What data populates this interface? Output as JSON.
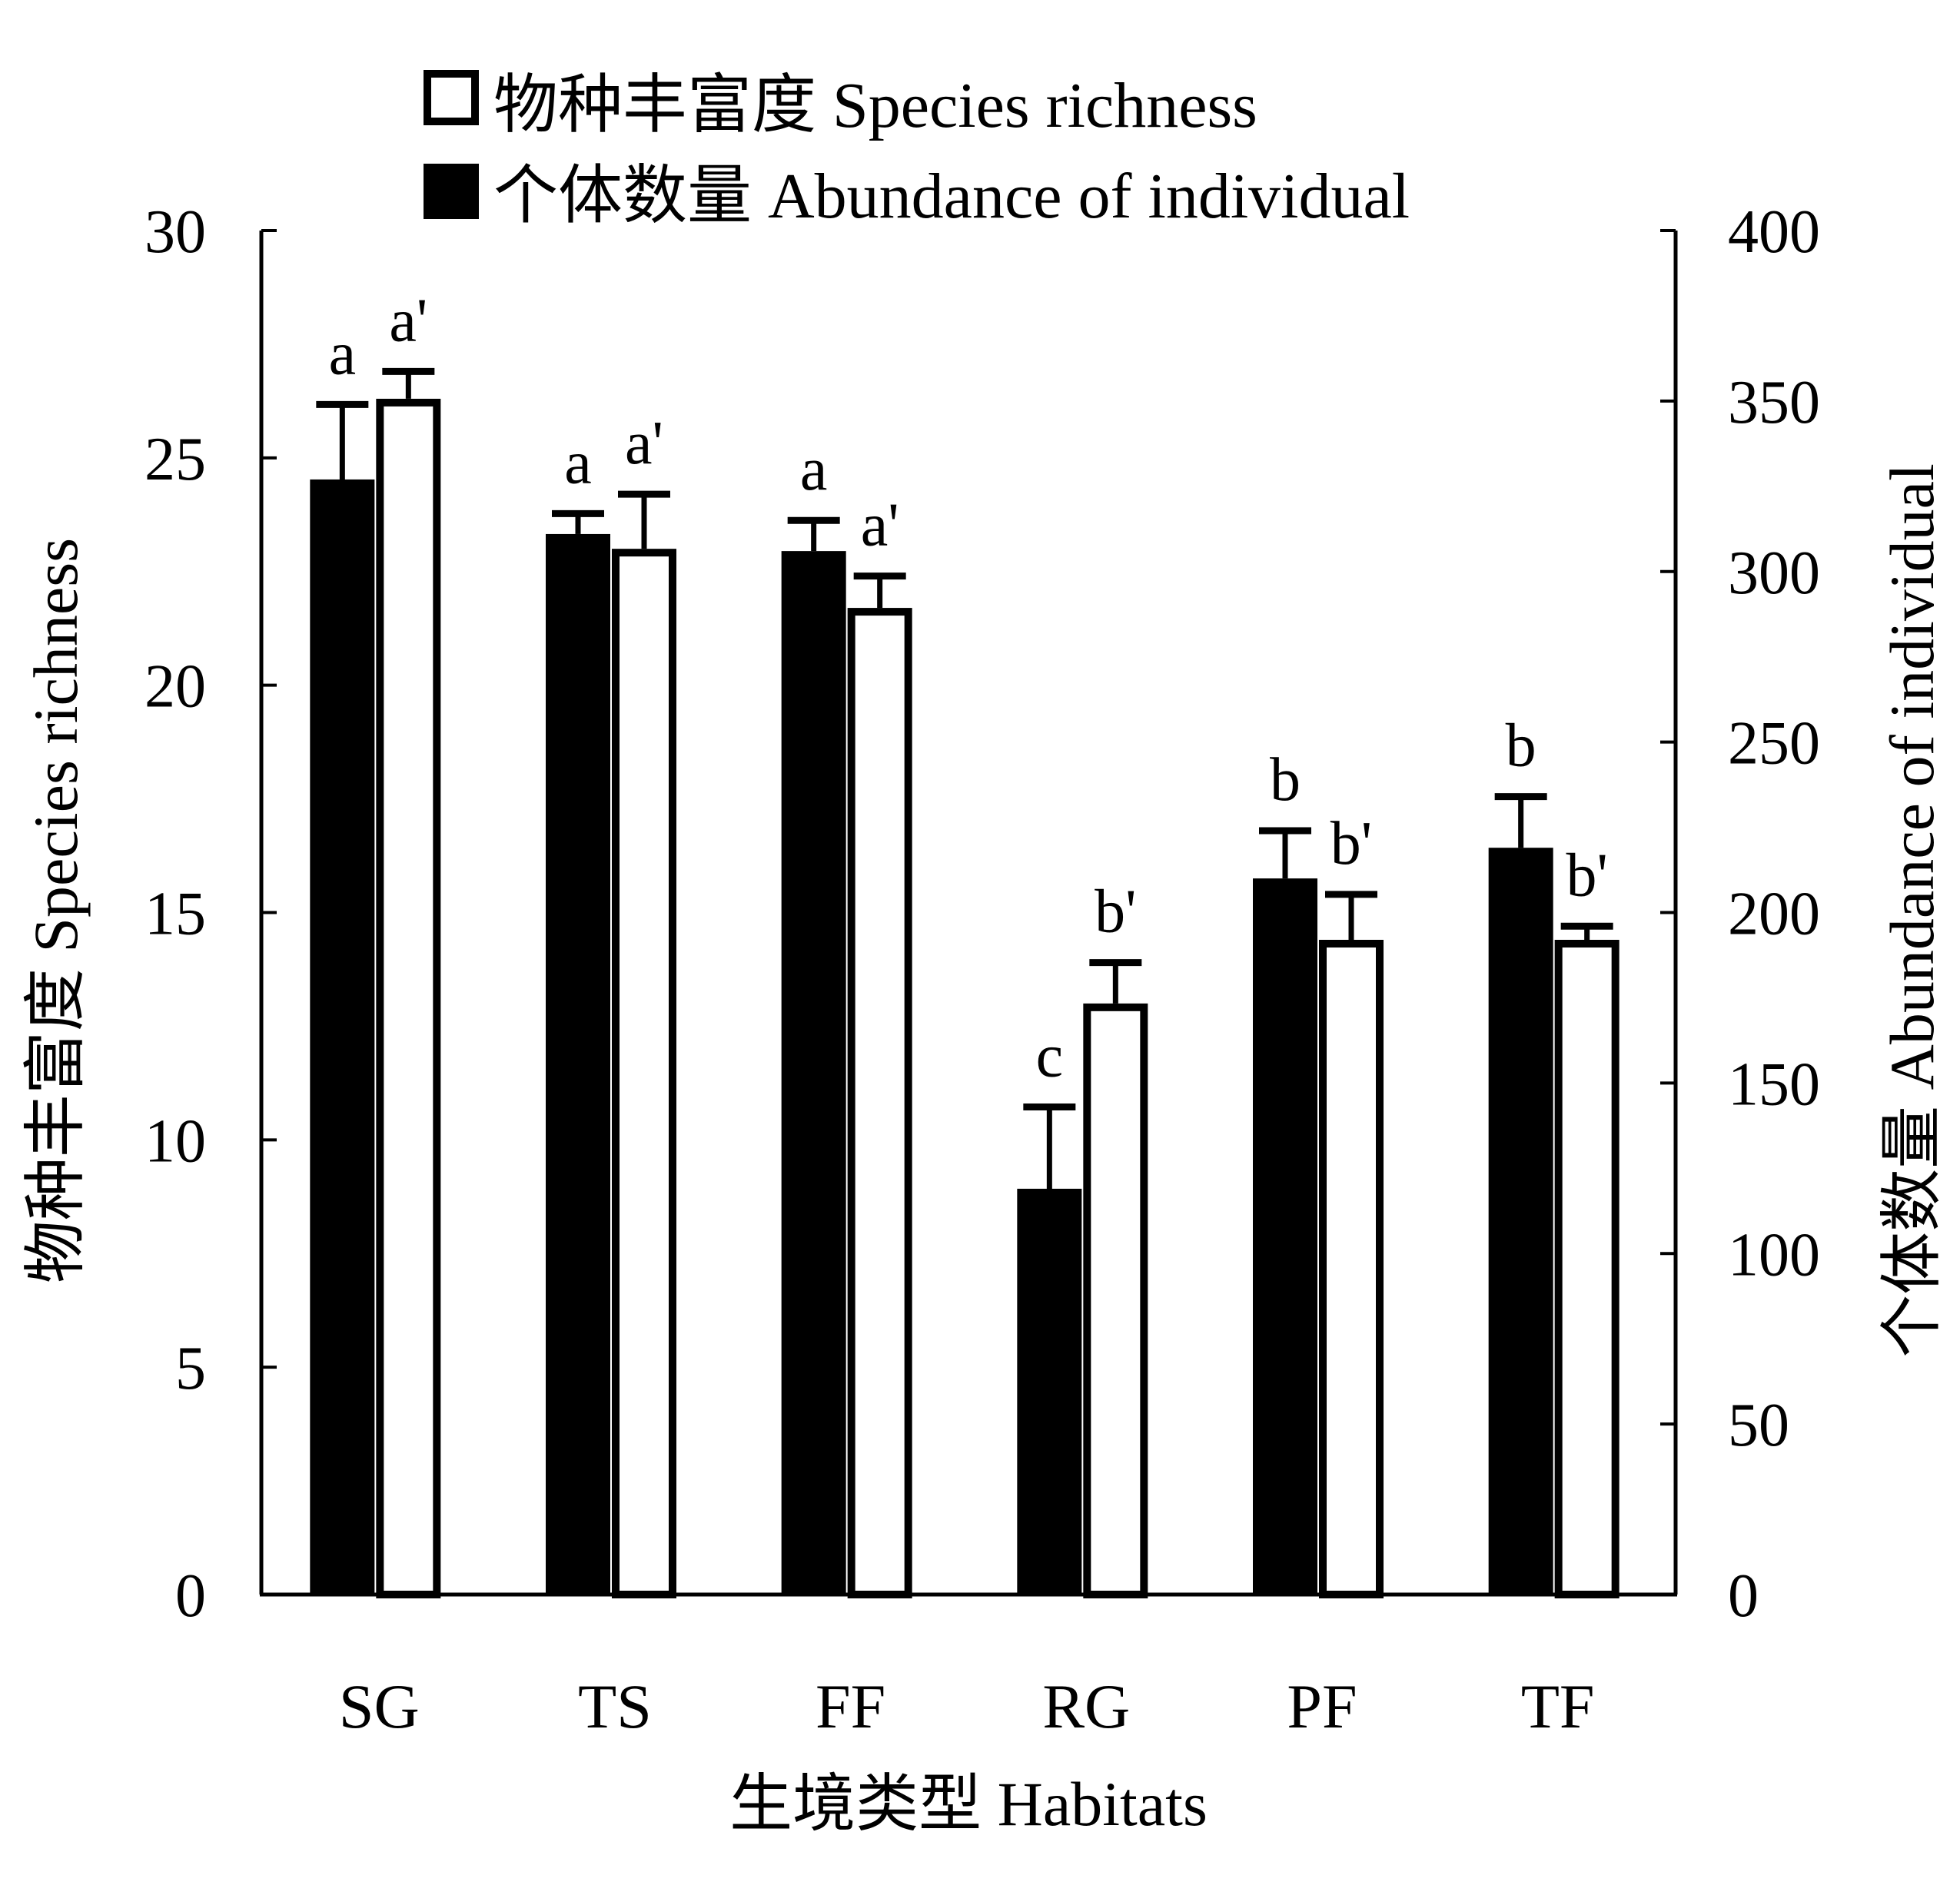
{
  "chart_data": {
    "type": "bar",
    "categories": [
      "SG",
      "TS",
      "FF",
      "RG",
      "PF",
      "TF"
    ],
    "xlabel": "生境类型 Habitats",
    "ylabel_left": "物种丰富度 Species richness",
    "ylabel_right": "个体数量 Abundance of individual",
    "ylim_left": [
      0,
      30
    ],
    "ylim_right": [
      0,
      400
    ],
    "yticks_left": [
      "0",
      "5",
      "10",
      "15",
      "20",
      "25",
      "30"
    ],
    "yticks_right": [
      "0",
      "50",
      "100",
      "150",
      "200",
      "250",
      "300",
      "350",
      "400"
    ],
    "legend": [
      {
        "label": "物种丰富度 Species richness",
        "fill": "#ffffff"
      },
      {
        "label": "个体数量 Abundance of individual",
        "fill": "#000000"
      }
    ],
    "legend_position": "top",
    "grid": false,
    "series": [
      {
        "name": "个体数量 Abundance of individual",
        "axis": "right",
        "fill": "#000000",
        "values": [
          327,
          311,
          306,
          119,
          210,
          219
        ],
        "errors": [
          22,
          6,
          9,
          24,
          14,
          15
        ],
        "letters": [
          "a",
          "a",
          "a",
          "c",
          "b",
          "b"
        ]
      },
      {
        "name": "物种丰富度 Species richness",
        "axis": "left",
        "fill": "#ffffff",
        "values": [
          26.3,
          23.0,
          21.7,
          13.0,
          14.4,
          14.4
        ],
        "errors": [
          0.6,
          1.2,
          0.7,
          0.9,
          1.0,
          0.3
        ],
        "letters": [
          "a'",
          "a'",
          "a'",
          "b'",
          "b'",
          "b'"
        ]
      }
    ]
  }
}
